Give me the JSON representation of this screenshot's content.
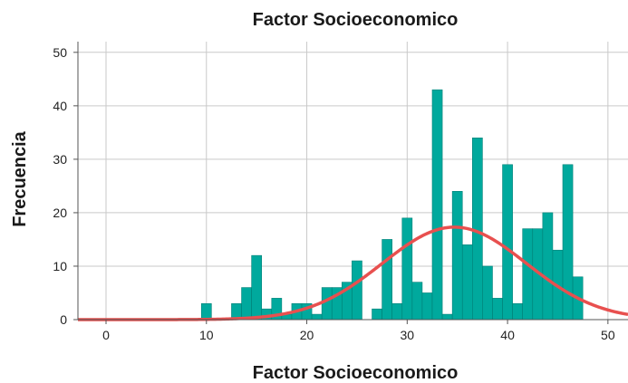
{
  "chart_data": {
    "type": "bar",
    "title": "Factor Socioeconomico",
    "xlabel": "Factor Socioeconomico",
    "ylabel": "Frecuencia",
    "xlim": [
      -2.8,
      52
    ],
    "ylim": [
      0,
      52
    ],
    "x_ticks": [
      0,
      10,
      20,
      30,
      40,
      50
    ],
    "y_ticks": [
      0,
      10,
      20,
      30,
      40,
      50
    ],
    "grid": true,
    "bins": [
      {
        "x": 10,
        "value": 3
      },
      {
        "x": 11,
        "value": 0
      },
      {
        "x": 12,
        "value": 0
      },
      {
        "x": 13,
        "value": 3
      },
      {
        "x": 14,
        "value": 6
      },
      {
        "x": 15,
        "value": 12
      },
      {
        "x": 16,
        "value": 2
      },
      {
        "x": 17,
        "value": 4
      },
      {
        "x": 18,
        "value": 1
      },
      {
        "x": 19,
        "value": 3
      },
      {
        "x": 20,
        "value": 3
      },
      {
        "x": 21,
        "value": 1
      },
      {
        "x": 22,
        "value": 6
      },
      {
        "x": 23,
        "value": 6
      },
      {
        "x": 24,
        "value": 7
      },
      {
        "x": 25,
        "value": 11
      },
      {
        "x": 26,
        "value": 0
      },
      {
        "x": 27,
        "value": 2
      },
      {
        "x": 28,
        "value": 15
      },
      {
        "x": 29,
        "value": 3
      },
      {
        "x": 30,
        "value": 19
      },
      {
        "x": 31,
        "value": 7
      },
      {
        "x": 32,
        "value": 5
      },
      {
        "x": 33,
        "value": 43
      },
      {
        "x": 34,
        "value": 1
      },
      {
        "x": 35,
        "value": 24
      },
      {
        "x": 36,
        "value": 14
      },
      {
        "x": 37,
        "value": 34
      },
      {
        "x": 38,
        "value": 10
      },
      {
        "x": 39,
        "value": 4
      },
      {
        "x": 40,
        "value": 29
      },
      {
        "x": 41,
        "value": 3
      },
      {
        "x": 42,
        "value": 17
      },
      {
        "x": 43,
        "value": 17
      },
      {
        "x": 44,
        "value": 20
      },
      {
        "x": 45,
        "value": 13
      },
      {
        "x": 46,
        "value": 29
      },
      {
        "x": 47,
        "value": 8
      }
    ],
    "bin_width": 1,
    "normal_curve": {
      "mean": 34.7,
      "sd": 7.2,
      "peak": 17.3
    },
    "colors": {
      "bar_fill": "#00a99d",
      "bar_stroke": "#007f76",
      "curve": "#e8504f",
      "grid": "#c9c9c9",
      "axis": "#555555"
    }
  }
}
